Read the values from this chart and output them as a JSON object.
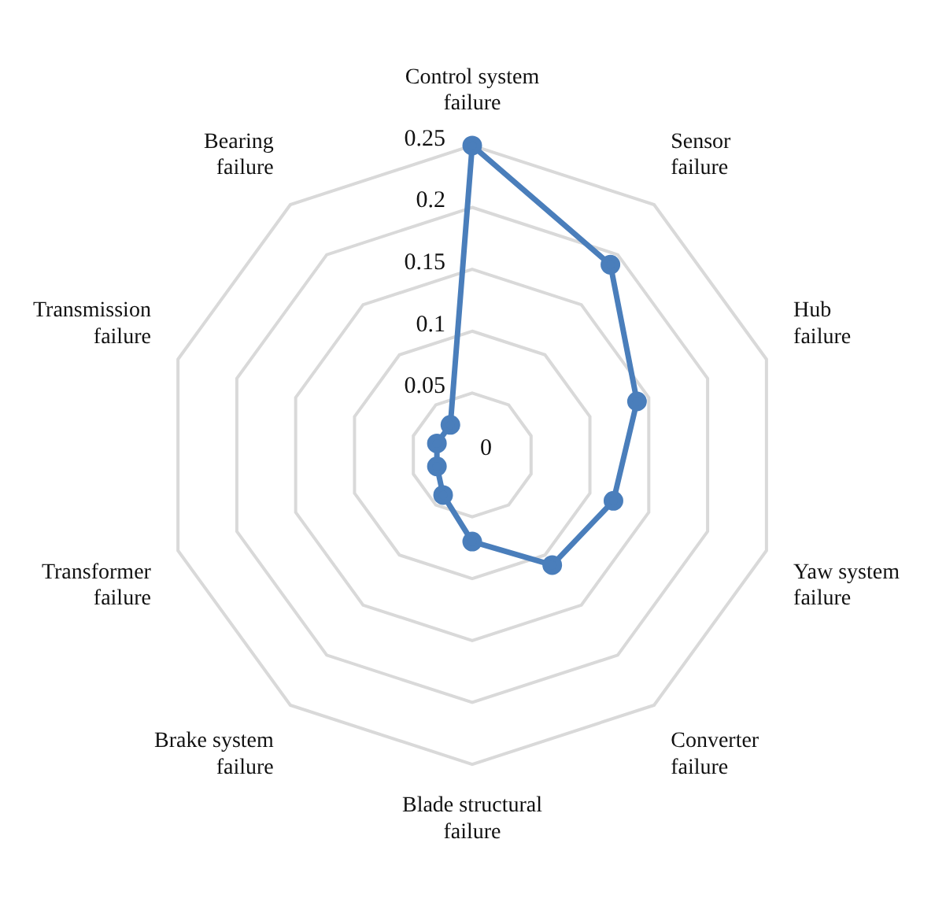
{
  "chart_data": {
    "type": "radar",
    "categories": [
      "Control system failure",
      "Sensor failure",
      "Hub failure",
      "Yaw system failure",
      "Converter failure",
      "Blade structural failure",
      "Brake system failure",
      "Transformer failure",
      "Transmission failure",
      "Bearing failure"
    ],
    "series": [
      {
        "color": "#4a7ebb",
        "values": [
          0.25,
          0.19,
          0.14,
          0.12,
          0.11,
          0.07,
          0.04,
          0.03,
          0.03,
          0.03
        ]
      }
    ],
    "ylim": [
      0,
      0.25
    ],
    "yticks": [
      0,
      0.05,
      0.1,
      0.15,
      0.2,
      0.25
    ],
    "grid": true,
    "legend": false,
    "marker": "circle",
    "line_style": "solid"
  }
}
